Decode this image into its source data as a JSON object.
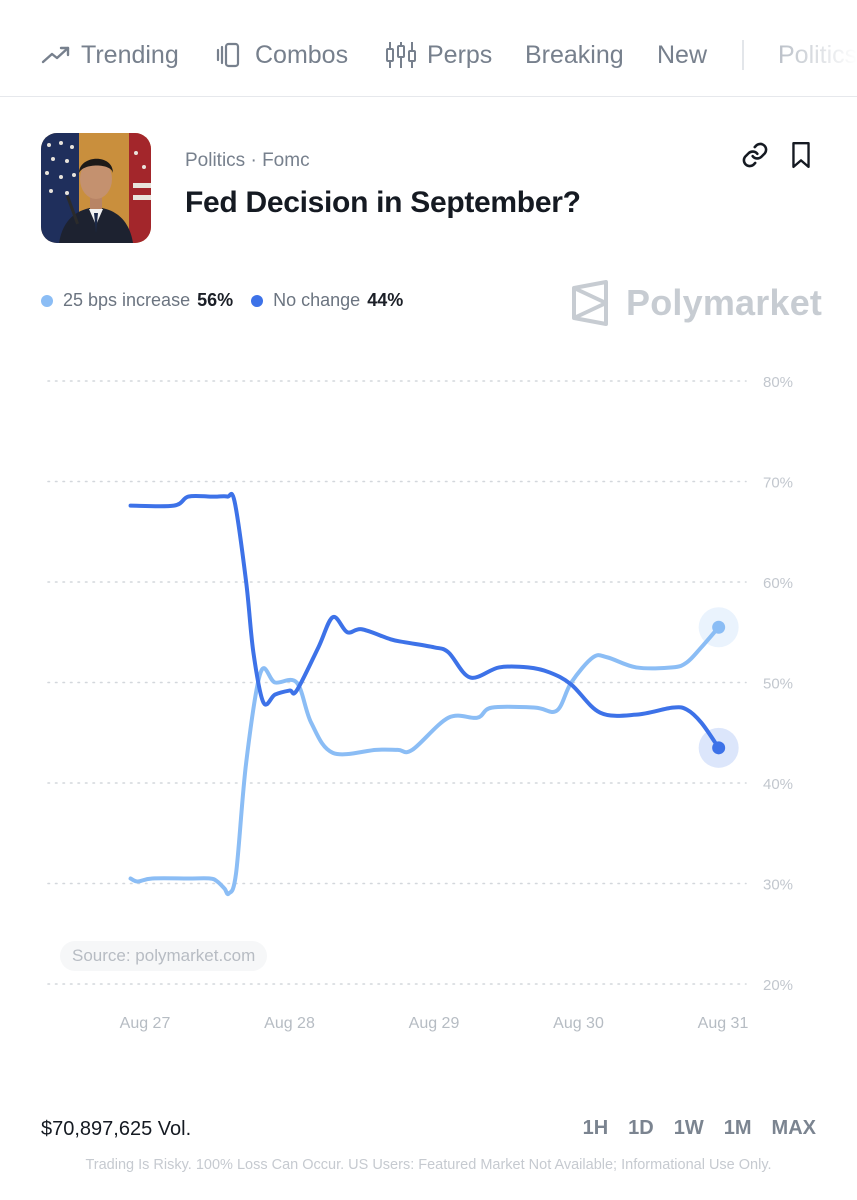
{
  "nav": {
    "items": [
      {
        "label": "Trending",
        "icon": "trending-icon"
      },
      {
        "label": "Combos",
        "icon": "combos-icon"
      },
      {
        "label": "Perps",
        "icon": "candlestick-icon"
      },
      {
        "label": "Breaking",
        "icon": ""
      },
      {
        "label": "New",
        "icon": ""
      },
      {
        "label": "Politics",
        "icon": ""
      }
    ]
  },
  "market": {
    "breadcrumb": "Politics · Fomc",
    "title": "Fed Decision in September?",
    "image": "portrait-photo"
  },
  "legend": {
    "outcomes": [
      {
        "label": "25 bps increase",
        "value": "56%",
        "color": "#8bbdf5"
      },
      {
        "label": "No change",
        "value": "44%",
        "color": "#3d72e8"
      }
    ]
  },
  "brand": {
    "name": "Polymarket"
  },
  "chart_data": {
    "type": "line",
    "x_tick_labels": [
      "Aug 27",
      "Aug 28",
      "Aug 29",
      "Aug 30",
      "Aug 31"
    ],
    "y_tick_labels": [
      "80%",
      "70%",
      "60%",
      "50%",
      "40%",
      "30%",
      "20%"
    ],
    "ylim": [
      20,
      80
    ],
    "grid": true,
    "series": [
      {
        "name": "25 bps increase",
        "color": "#8bbdf5",
        "x": [
          26.9,
          26.95,
          27.05,
          27.3,
          27.45,
          27.5,
          27.55,
          27.58,
          27.63,
          27.7,
          27.8,
          27.9,
          28.05,
          28.15,
          28.3,
          28.6,
          28.75,
          28.85,
          29.1,
          29.3,
          29.4,
          29.7,
          29.85,
          29.95,
          30.1,
          30.2,
          30.4,
          30.65,
          30.75,
          30.85,
          30.97
        ],
        "values": [
          30.5,
          30.2,
          30.5,
          30.5,
          30.5,
          30.2,
          29.5,
          29.0,
          31,
          42,
          51,
          50,
          50,
          46,
          43,
          43.3,
          43.3,
          43.3,
          46.5,
          46.5,
          47.5,
          47.5,
          47.2,
          50,
          52.5,
          52.5,
          51.5,
          51.5,
          52,
          53.5,
          55.5
        ]
      },
      {
        "name": "No change",
        "color": "#3d72e8",
        "x": [
          26.9,
          27.2,
          27.3,
          27.45,
          27.5,
          27.57,
          27.62,
          27.7,
          27.75,
          27.82,
          27.9,
          28.0,
          28.05,
          28.2,
          28.3,
          28.4,
          28.5,
          28.7,
          28.8,
          29.0,
          29.1,
          29.25,
          29.45,
          29.65,
          29.8,
          29.95,
          30.15,
          30.4,
          30.65,
          30.75,
          30.85,
          30.97
        ],
        "values": [
          67.6,
          67.6,
          68.5,
          68.5,
          68.5,
          68.5,
          68.0,
          60,
          53,
          48,
          48.8,
          49.2,
          49.2,
          53.5,
          56.5,
          55,
          55.3,
          54.3,
          54,
          53.5,
          53,
          50.5,
          51.5,
          51.5,
          51,
          49.8,
          47,
          46.8,
          47.5,
          47.3,
          46,
          43.5
        ]
      }
    ]
  },
  "source": "Source: polymarket.com",
  "footer": {
    "volume": "$70,897,625 Vol.",
    "ranges": [
      "1H",
      "1D",
      "1W",
      "1M",
      "MAX"
    ],
    "disclaimer": "Trading Is Risky. 100% Loss Can Occur. US Users: Featured Market Not Available; Informational Use Only."
  }
}
